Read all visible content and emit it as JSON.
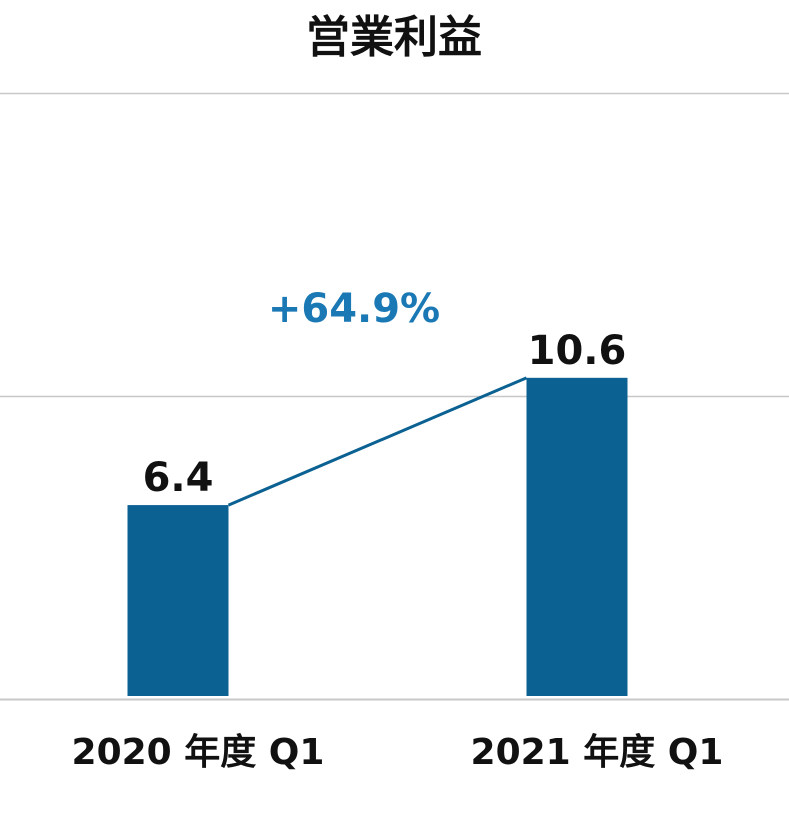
{
  "chart_data": {
    "type": "bar",
    "title": "営業利益",
    "categories": [
      "2020 年度  Q1",
      "2021 年度  Q1"
    ],
    "values": [
      6.4,
      10.6
    ],
    "value_labels": [
      "6.4",
      "10.6"
    ],
    "xlabel": "",
    "ylabel": "",
    "ylim": [
      0,
      20
    ],
    "grid": true,
    "gridlines": [
      0,
      10,
      20
    ],
    "growth_annotation": "+64.9%",
    "bar_color": "#0b6192",
    "connector_color": "#0b6192",
    "annotation_color": "#1a78b4",
    "grid_color": "#c8c8c8"
  }
}
